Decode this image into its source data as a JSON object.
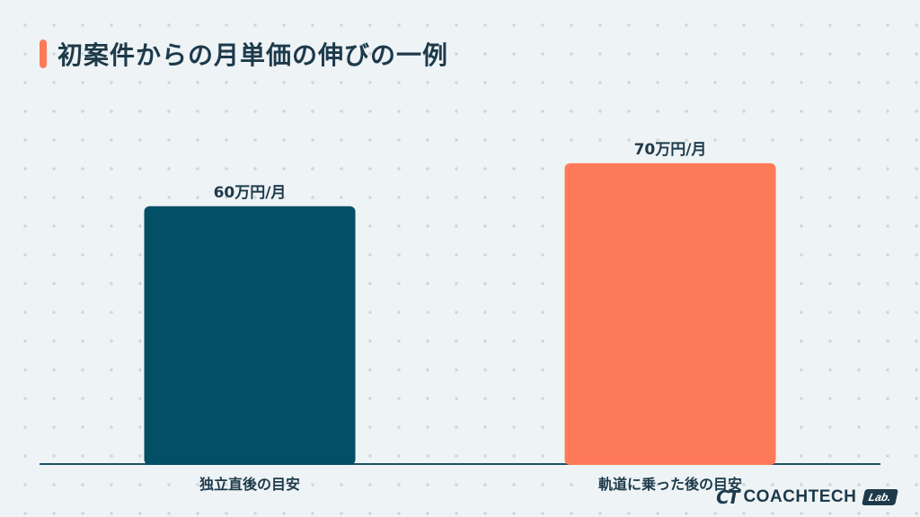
{
  "header": {
    "title": "初案件からの月単価の伸びの一例"
  },
  "colors": {
    "accent": "#ff7a59",
    "title": "#1d3a4a",
    "axis": "#1d4f63",
    "bar_primary": "#034f66",
    "bar_secondary": "#ff7a59"
  },
  "chart_data": {
    "type": "bar",
    "title": "初案件からの月単価の伸びの一例",
    "xlabel": "",
    "ylabel": "",
    "unit": "万円/月",
    "categories": [
      "独立直後の目安",
      "軌道に乗った後の目安"
    ],
    "values": [
      60,
      70
    ],
    "data_labels": [
      "60万円/月",
      "70万円/月"
    ],
    "bar_colors": [
      "#034f66",
      "#ff7a59"
    ],
    "ylim": [
      0,
      80
    ],
    "grid": false,
    "legend": "none"
  },
  "branding": {
    "mark": "CT",
    "name": "COACHTECH",
    "badge": "Lab."
  }
}
